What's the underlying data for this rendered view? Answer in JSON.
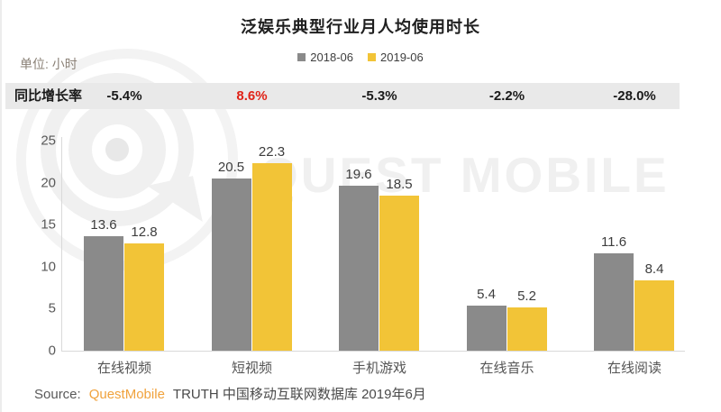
{
  "page": {
    "title": "泛娱乐典型行业月人均使用时长",
    "unit_label": "单位: 小时"
  },
  "legend": [
    {
      "label": "2018-06",
      "color": "#8a8a8a"
    },
    {
      "label": "2019-06",
      "color": "#f2c437"
    }
  ],
  "growth_row": {
    "label": "同比增长率",
    "values": [
      {
        "text": "-5.4%",
        "highlight": false
      },
      {
        "text": "8.6%",
        "highlight": true
      },
      {
        "text": "-5.3%",
        "highlight": false
      },
      {
        "text": "-2.2%",
        "highlight": false
      },
      {
        "text": "-28.0%",
        "highlight": false
      }
    ]
  },
  "chart_data": {
    "type": "bar",
    "title": "泛娱乐典型行业月人均使用时长",
    "unit": "小时",
    "categories": [
      "在线视频",
      "短视频",
      "手机游戏",
      "在线音乐",
      "在线阅读"
    ],
    "series": [
      {
        "name": "2018-06",
        "color": "#8a8a8a",
        "values": [
          13.6,
          20.5,
          19.6,
          5.4,
          11.6
        ]
      },
      {
        "name": "2019-06",
        "color": "#f2c437",
        "values": [
          12.8,
          22.3,
          18.5,
          5.2,
          8.4
        ]
      }
    ],
    "yoy_growth": [
      "-5.4%",
      "8.6%",
      "-5.3%",
      "-2.2%",
      "-28.0%"
    ],
    "ylim": [
      0,
      25
    ],
    "yticks": [
      0,
      5,
      10,
      15,
      20,
      25
    ],
    "grid": false,
    "legend_position": "top-center",
    "highlight_color": "#e02318"
  },
  "watermark": {
    "text": "QUEST MOBILE"
  },
  "source": {
    "prefix": "Source:",
    "brand": "QuestMobile",
    "rest": "TRUTH 中国移动互联网数据库 2019年6月"
  }
}
